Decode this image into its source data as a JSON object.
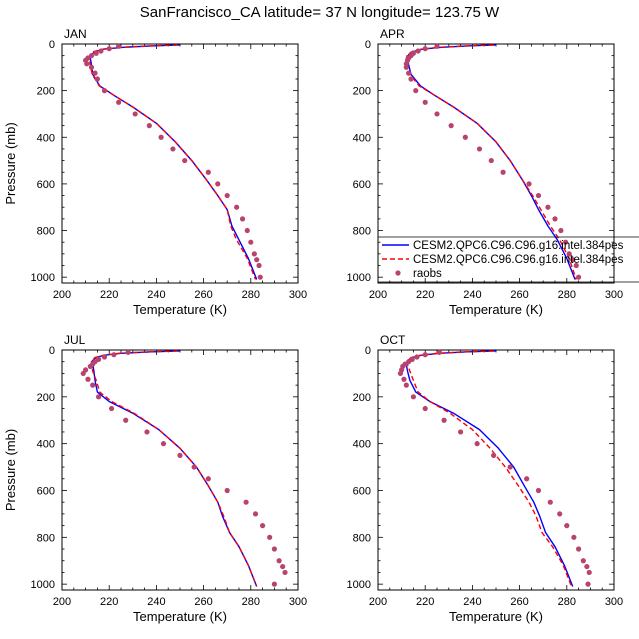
{
  "figure": {
    "title": "SanFrancisco_CA  latitude= 37 N longitude= 123.75 W"
  },
  "legend": {
    "entries": [
      {
        "label": "CESM2.QPC6.C96.C96.g16.intel.384pes",
        "color": "#0000ff",
        "style": "solid"
      },
      {
        "label": "CESM2.QPC6.C96.C96.g16.intel.384pes",
        "color": "#ff0000",
        "style": "dashed"
      },
      {
        "label": "raobs",
        "color": "#b8436e",
        "style": "marker"
      }
    ]
  },
  "chart_data": [
    {
      "type": "line",
      "panel": "JAN",
      "title": "JAN",
      "xlabel": "Temperature (K)",
      "ylabel": "Pressure (mb)",
      "xlim": [
        200,
        300
      ],
      "ylim": [
        1025,
        0
      ],
      "xticks": [
        200,
        220,
        240,
        260,
        280,
        300
      ],
      "yticks": [
        0,
        200,
        400,
        600,
        800,
        1000
      ],
      "series": [
        {
          "name": "CESM2.QPC6.C96.C96.g16.intel.384pes",
          "color": "#0000ff",
          "style": "solid",
          "x": [
            250,
            238,
            226,
            218,
            214,
            212.5,
            212,
            212.5,
            213,
            216,
            222,
            230,
            240,
            248,
            255,
            261,
            266,
            270,
            272,
            275,
            279,
            282.5
          ],
          "y": [
            4,
            8,
            14,
            22,
            32,
            45,
            60,
            90,
            130,
            180,
            220,
            270,
            340,
            420,
            500,
            580,
            650,
            710,
            780,
            840,
            920,
            1010
          ]
        },
        {
          "name": "CESM2.QPC6.C96.C96.g16.intel.384pes",
          "color": "#ff0000",
          "style": "dashed",
          "x": [
            249,
            237,
            225,
            217.5,
            213.5,
            212,
            211.5,
            212,
            212.8,
            215.8,
            222,
            230,
            240,
            248,
            255,
            261,
            266,
            270,
            271.5,
            274,
            278.5,
            282
          ],
          "y": [
            4,
            8,
            14,
            22,
            32,
            45,
            60,
            90,
            130,
            180,
            220,
            270,
            340,
            420,
            500,
            580,
            650,
            710,
            780,
            840,
            920,
            1010
          ]
        },
        {
          "name": "raobs",
          "color": "#b8436e",
          "style": "marker",
          "x": [
            224,
            220,
            216.5,
            214.5,
            212.5,
            211,
            210,
            210.5,
            212.5,
            214,
            215,
            218,
            224,
            231,
            237,
            242,
            247,
            252,
            262,
            266,
            270,
            274,
            276.5,
            278.5,
            280,
            281.5,
            282.5,
            283.5,
            284
          ],
          "y": [
            10,
            20,
            30,
            40,
            50,
            60,
            70,
            85,
            100,
            125,
            150,
            200,
            250,
            300,
            350,
            400,
            450,
            500,
            550,
            600,
            650,
            700,
            750,
            800,
            850,
            900,
            925,
            950,
            1000
          ]
        }
      ]
    },
    {
      "type": "line",
      "panel": "APR",
      "title": "APR",
      "xlabel": "Temperature (K)",
      "ylabel": "",
      "xlim": [
        200,
        300
      ],
      "ylim": [
        1025,
        0
      ],
      "xticks": [
        200,
        220,
        240,
        260,
        280,
        300
      ],
      "yticks": [
        0,
        200,
        400,
        600,
        800,
        1000
      ],
      "series": [
        {
          "name": "CESM2.QPC6.C96.C96.g16.intel.384pes",
          "color": "#0000ff",
          "style": "solid",
          "x": [
            250,
            238,
            227,
            219,
            215,
            213,
            212.5,
            213,
            214,
            218,
            224,
            232,
            242,
            250,
            256,
            261,
            265,
            268,
            272,
            276,
            280,
            283.5
          ],
          "y": [
            4,
            8,
            14,
            22,
            32,
            45,
            60,
            90,
            130,
            180,
            220,
            270,
            340,
            420,
            500,
            580,
            650,
            710,
            780,
            840,
            920,
            1010
          ]
        },
        {
          "name": "CESM2.QPC6.C96.C96.g16.intel.384pes",
          "color": "#ff0000",
          "style": "dashed",
          "x": [
            249,
            237,
            226,
            218.5,
            214.5,
            212.5,
            212,
            212.5,
            213.5,
            217.5,
            224,
            232,
            242,
            250,
            256,
            261,
            265.5,
            269,
            273,
            277,
            281,
            284
          ],
          "y": [
            4,
            8,
            14,
            22,
            32,
            45,
            60,
            90,
            130,
            180,
            220,
            270,
            340,
            420,
            500,
            580,
            650,
            710,
            780,
            840,
            920,
            1010
          ]
        },
        {
          "name": "raobs",
          "color": "#b8436e",
          "style": "marker",
          "x": [
            225,
            220,
            217,
            215,
            214,
            213,
            212.5,
            212,
            212,
            213,
            214,
            216,
            220,
            225,
            231,
            237,
            243,
            248,
            253,
            264,
            268,
            272,
            275,
            277.5,
            279.5,
            281,
            282.5,
            284,
            285
          ],
          "y": [
            10,
            20,
            30,
            40,
            50,
            60,
            70,
            85,
            100,
            125,
            150,
            200,
            250,
            300,
            350,
            400,
            450,
            500,
            550,
            600,
            650,
            700,
            750,
            800,
            850,
            900,
            925,
            950,
            1000
          ]
        }
      ]
    },
    {
      "type": "line",
      "panel": "JUL",
      "title": "JUL",
      "xlabel": "Temperature (K)",
      "ylabel": "Pressure (mb)",
      "xlim": [
        200,
        300
      ],
      "ylim": [
        1025,
        0
      ],
      "xticks": [
        200,
        220,
        240,
        260,
        280,
        300
      ],
      "yticks": [
        0,
        200,
        400,
        600,
        800,
        1000
      ],
      "series": [
        {
          "name": "CESM2.QPC6.C96.C96.g16.intel.384pes",
          "color": "#0000ff",
          "style": "solid",
          "x": [
            250,
            237,
            225,
            218,
            214.5,
            213,
            213,
            213.5,
            214,
            215,
            220,
            230,
            241,
            250,
            257,
            262,
            266,
            268,
            271,
            275,
            279,
            282.5
          ],
          "y": [
            4,
            8,
            14,
            22,
            32,
            45,
            60,
            90,
            130,
            180,
            220,
            270,
            340,
            420,
            500,
            580,
            650,
            710,
            780,
            840,
            920,
            1010
          ]
        },
        {
          "name": "CESM2.QPC6.C96.C96.g16.intel.384pes",
          "color": "#ff0000",
          "style": "dashed",
          "x": [
            249,
            236,
            224,
            217.5,
            214,
            212.5,
            212.5,
            213,
            214.5,
            216,
            221,
            230.5,
            241,
            250,
            257,
            262,
            266,
            268.5,
            271,
            275,
            279,
            282.5
          ],
          "y": [
            4,
            8,
            14,
            22,
            32,
            45,
            60,
            90,
            130,
            180,
            220,
            270,
            340,
            420,
            500,
            580,
            650,
            710,
            780,
            840,
            920,
            1010
          ]
        },
        {
          "name": "raobs",
          "color": "#b8436e",
          "style": "marker",
          "x": [
            228,
            222,
            218,
            215.5,
            214,
            213,
            212,
            210,
            209,
            211,
            213,
            215.5,
            221,
            227,
            236,
            243,
            250,
            256,
            262,
            270,
            278,
            282,
            285,
            288,
            290,
            292,
            293.5,
            294.5,
            290
          ],
          "y": [
            10,
            20,
            30,
            40,
            50,
            60,
            70,
            85,
            100,
            125,
            150,
            200,
            250,
            300,
            350,
            400,
            450,
            500,
            550,
            600,
            650,
            700,
            750,
            800,
            850,
            900,
            925,
            950,
            1000
          ]
        }
      ]
    },
    {
      "type": "line",
      "panel": "OCT",
      "title": "OCT",
      "xlabel": "Temperature (K)",
      "ylabel": "",
      "xlim": [
        200,
        300
      ],
      "ylim": [
        1025,
        0
      ],
      "xticks": [
        200,
        220,
        240,
        260,
        280,
        300
      ],
      "yticks": [
        0,
        200,
        400,
        600,
        800,
        1000
      ],
      "series": [
        {
          "name": "CESM2.QPC6.C96.C96.g16.intel.384pes",
          "color": "#0000ff",
          "style": "solid",
          "x": [
            250,
            237,
            226,
            218.5,
            214.5,
            212.5,
            212,
            212.5,
            213.5,
            216,
            222,
            232,
            243,
            251,
            257.5,
            262,
            266,
            268.5,
            271,
            275,
            279,
            282.5
          ],
          "y": [
            4,
            8,
            14,
            22,
            32,
            45,
            60,
            90,
            130,
            180,
            220,
            270,
            340,
            420,
            500,
            580,
            650,
            710,
            780,
            840,
            920,
            1010
          ]
        },
        {
          "name": "CESM2.QPC6.C96.C96.g16.intel.384pes",
          "color": "#ff0000",
          "style": "dashed",
          "x": [
            249,
            236,
            225,
            218,
            214,
            212.5,
            212.5,
            213.5,
            215,
            217,
            222,
            230.5,
            240,
            247.5,
            254,
            259.5,
            264,
            267,
            269.5,
            274,
            278.5,
            282
          ],
          "y": [
            4,
            8,
            14,
            22,
            32,
            45,
            60,
            90,
            130,
            180,
            220,
            270,
            340,
            420,
            500,
            580,
            650,
            710,
            780,
            840,
            920,
            1010
          ]
        },
        {
          "name": "raobs",
          "color": "#b8436e",
          "style": "marker",
          "x": [
            226,
            220,
            216.5,
            214.5,
            213,
            211.5,
            210.5,
            210,
            209.5,
            211,
            212,
            215,
            220,
            228,
            235,
            242,
            249,
            256,
            263,
            268,
            273,
            277,
            280,
            283,
            285,
            287,
            288.5,
            289.5,
            289
          ],
          "y": [
            10,
            20,
            30,
            40,
            50,
            60,
            70,
            85,
            100,
            125,
            150,
            200,
            250,
            300,
            350,
            400,
            450,
            500,
            550,
            600,
            650,
            700,
            750,
            800,
            850,
            900,
            925,
            950,
            1000
          ]
        }
      ]
    }
  ]
}
